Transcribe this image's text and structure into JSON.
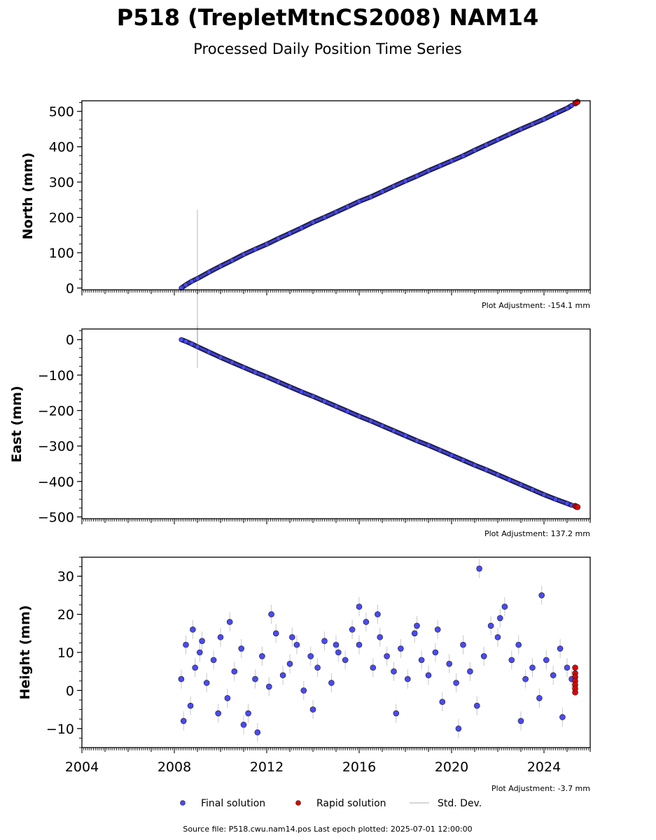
{
  "title": "P518 (TrepletMtnCS2008) NAM14",
  "subtitle": "Processed Daily Position Time Series",
  "source_note": "Source file: P518.cwu.nam14.pos  Last epoch plotted: 2025-07-01 12:00:00",
  "legend": {
    "final": "Final solution",
    "rapid": "Rapid solution",
    "stddev": "Std. Dev."
  },
  "colors": {
    "final": "#4a4af5",
    "rapid": "#e00000",
    "stddev": "#9a9a9a",
    "edge": "#1a1a1a"
  },
  "chart_data": [
    {
      "type": "scatter",
      "ylabel": "North (mm)",
      "adjustment": "Plot Adjustment: -154.1 mm",
      "xlim": [
        2004,
        2026
      ],
      "ylim": [
        -5,
        530
      ],
      "yticks": [
        0,
        100,
        200,
        300,
        400,
        500
      ],
      "ytick_labels": [
        "0",
        "100",
        "200",
        "300",
        "400",
        "500"
      ],
      "xticks": [
        2004,
        2008,
        2012,
        2016,
        2020,
        2024
      ],
      "xtick_labels": [],
      "final": {
        "x": [
          2008.3,
          2008.5,
          2008.75,
          2009.0,
          2009.5,
          2010.0,
          2010.5,
          2011.0,
          2011.5,
          2012.0,
          2012.5,
          2013.0,
          2013.5,
          2014.0,
          2014.5,
          2015.0,
          2015.5,
          2016.0,
          2016.5,
          2017.0,
          2017.5,
          2018.0,
          2018.5,
          2019.0,
          2019.5,
          2020.0,
          2020.5,
          2021.0,
          2021.5,
          2022.0,
          2022.5,
          2023.0,
          2023.5,
          2024.0,
          2024.5,
          2025.0,
          2025.2
        ],
        "y": [
          0,
          9,
          19,
          27,
          45,
          62,
          78,
          95,
          110,
          124,
          140,
          155,
          170,
          186,
          200,
          215,
          230,
          245,
          258,
          273,
          288,
          303,
          317,
          332,
          346,
          360,
          374,
          390,
          405,
          420,
          435,
          450,
          464,
          478,
          494,
          509,
          517
        ],
        "err": [
          3,
          3,
          3,
          195,
          3,
          3,
          3,
          3,
          3,
          3,
          3,
          3,
          3,
          3,
          3,
          3,
          3,
          3,
          3,
          3,
          3,
          3,
          3,
          3,
          3,
          3,
          3,
          3,
          3,
          3,
          3,
          3,
          3,
          3,
          3,
          3,
          3
        ]
      },
      "rapid": {
        "x": [
          2025.35,
          2025.4,
          2025.45
        ],
        "y": [
          523,
          525,
          527
        ]
      }
    },
    {
      "type": "scatter",
      "ylabel": "East (mm)",
      "adjustment": "Plot Adjustment: 137.2 mm",
      "xlim": [
        2004,
        2026
      ],
      "ylim": [
        -505,
        30
      ],
      "yticks": [
        0,
        -100,
        -200,
        -300,
        -400,
        -500
      ],
      "ytick_labels": [
        "0",
        "−100",
        "−200",
        "−300",
        "−400",
        "−500"
      ],
      "xticks": [
        2004,
        2008,
        2012,
        2016,
        2020,
        2024
      ],
      "xtick_labels": [],
      "final": {
        "x": [
          2008.3,
          2008.5,
          2008.75,
          2009.0,
          2009.5,
          2010.0,
          2010.5,
          2011.0,
          2011.5,
          2012.0,
          2012.5,
          2013.0,
          2013.5,
          2014.0,
          2014.5,
          2015.0,
          2015.5,
          2016.0,
          2016.5,
          2017.0,
          2017.5,
          2018.0,
          2018.5,
          2019.0,
          2019.5,
          2020.0,
          2020.5,
          2021.0,
          2021.5,
          2022.0,
          2022.5,
          2023.0,
          2023.5,
          2024.0,
          2024.5,
          2025.0,
          2025.2
        ],
        "y": [
          0,
          -5,
          -12,
          -20,
          -35,
          -50,
          -64,
          -78,
          -92,
          -105,
          -119,
          -133,
          -147,
          -160,
          -174,
          -188,
          -202,
          -216,
          -229,
          -243,
          -257,
          -271,
          -285,
          -298,
          -312,
          -326,
          -340,
          -354,
          -367,
          -381,
          -395,
          -409,
          -423,
          -437,
          -450,
          -462,
          -467
        ],
        "err": [
          3,
          3,
          3,
          60,
          3,
          3,
          3,
          3,
          3,
          3,
          3,
          3,
          3,
          3,
          3,
          3,
          3,
          3,
          3,
          3,
          3,
          3,
          3,
          3,
          3,
          3,
          3,
          3,
          3,
          3,
          3,
          3,
          3,
          3,
          3,
          3,
          3
        ]
      },
      "rapid": {
        "x": [
          2025.35,
          2025.4,
          2025.45
        ],
        "y": [
          -469,
          -471,
          -472
        ]
      }
    },
    {
      "type": "scatter",
      "ylabel": "Height (mm)",
      "adjustment": "Plot Adjustment: -3.7 mm",
      "xlim": [
        2004,
        2026
      ],
      "ylim": [
        -15,
        35
      ],
      "yticks": [
        30,
        20,
        10,
        0,
        -10
      ],
      "ytick_labels": [
        "30",
        "20",
        "10",
        "0",
        "−10"
      ],
      "xticks": [
        2004,
        2008,
        2012,
        2016,
        2020,
        2024
      ],
      "xtick_labels": [
        "2004",
        "2008",
        "2012",
        "2016",
        "2020",
        "2024"
      ],
      "final": {
        "x": [
          2008.3,
          2008.5,
          2008.7,
          2008.9,
          2009.1,
          2009.4,
          2009.7,
          2010.0,
          2010.3,
          2010.6,
          2010.9,
          2011.2,
          2011.5,
          2011.8,
          2012.1,
          2012.4,
          2012.7,
          2013.0,
          2013.3,
          2013.6,
          2013.9,
          2014.2,
          2014.5,
          2014.8,
          2015.1,
          2015.4,
          2015.7,
          2016.0,
          2016.3,
          2016.6,
          2016.9,
          2017.2,
          2017.5,
          2017.8,
          2018.1,
          2018.4,
          2018.7,
          2019.0,
          2019.3,
          2019.6,
          2019.9,
          2020.2,
          2020.5,
          2020.8,
          2021.1,
          2021.4,
          2021.7,
          2022.0,
          2022.3,
          2022.6,
          2022.9,
          2023.2,
          2023.5,
          2023.8,
          2024.1,
          2024.4,
          2024.7,
          2025.0,
          2025.2,
          2008.4,
          2008.8,
          2009.2,
          2009.9,
          2010.4,
          2011.0,
          2011.6,
          2012.2,
          2013.1,
          2014.0,
          2015.0,
          2016.0,
          2016.8,
          2017.6,
          2018.5,
          2019.4,
          2020.3,
          2021.2,
          2022.1,
          2023.0,
          2023.9,
          2024.8
        ],
        "y": [
          3,
          12,
          -4,
          6,
          10,
          2,
          8,
          14,
          -2,
          5,
          11,
          -6,
          3,
          9,
          1,
          15,
          4,
          7,
          12,
          0,
          9,
          6,
          13,
          2,
          10,
          8,
          16,
          12,
          18,
          6,
          14,
          9,
          5,
          11,
          3,
          15,
          8,
          4,
          10,
          -3,
          7,
          2,
          12,
          5,
          -4,
          9,
          17,
          14,
          22,
          8,
          12,
          3,
          6,
          -2,
          8,
          4,
          11,
          6,
          3,
          -8,
          16,
          13,
          -6,
          18,
          -9,
          -11,
          20,
          14,
          -5,
          12,
          22,
          20,
          -6,
          17,
          16,
          -10,
          32,
          19,
          -8,
          25,
          -7
        ],
        "err": 2.5
      },
      "rapid": {
        "x": [
          2025.35,
          2025.35,
          2025.35,
          2025.35,
          2025.35,
          2025.35,
          2025.35
        ],
        "y": [
          6,
          4.5,
          3.5,
          2.5,
          1.5,
          0.5,
          -0.5
        ]
      }
    }
  ]
}
